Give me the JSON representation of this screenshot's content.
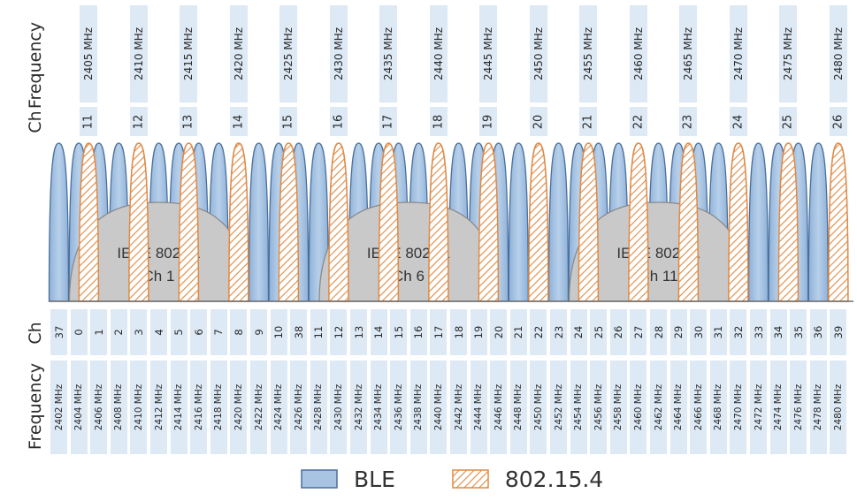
{
  "labels": {
    "top_frequency": "Frequency",
    "top_channel": "Ch",
    "bottom_channel": "Ch",
    "bottom_frequency": "Frequency"
  },
  "zigbee_channels": [
    {
      "ch": "11",
      "freq": "2405 MHz"
    },
    {
      "ch": "12",
      "freq": "2410 MHz"
    },
    {
      "ch": "13",
      "freq": "2415 MHz"
    },
    {
      "ch": "14",
      "freq": "2420 MHz"
    },
    {
      "ch": "15",
      "freq": "2425 MHz"
    },
    {
      "ch": "16",
      "freq": "2430 MHz"
    },
    {
      "ch": "17",
      "freq": "2435 MHz"
    },
    {
      "ch": "18",
      "freq": "2440 MHz"
    },
    {
      "ch": "19",
      "freq": "2445 MHz"
    },
    {
      "ch": "20",
      "freq": "2450 MHz"
    },
    {
      "ch": "21",
      "freq": "2455 MHz"
    },
    {
      "ch": "22",
      "freq": "2460 MHz"
    },
    {
      "ch": "23",
      "freq": "2465 MHz"
    },
    {
      "ch": "24",
      "freq": "2470 MHz"
    },
    {
      "ch": "25",
      "freq": "2475 MHz"
    },
    {
      "ch": "26",
      "freq": "2480 MHz"
    }
  ],
  "ble_channels": [
    {
      "ch": "37",
      "freq": "2402 MHz"
    },
    {
      "ch": "0",
      "freq": "2404 MHz"
    },
    {
      "ch": "1",
      "freq": "2406 MHz"
    },
    {
      "ch": "2",
      "freq": "2408 MHz"
    },
    {
      "ch": "3",
      "freq": "2410 MHz"
    },
    {
      "ch": "4",
      "freq": "2412 MHz"
    },
    {
      "ch": "5",
      "freq": "2414 MHz"
    },
    {
      "ch": "6",
      "freq": "2416 MHz"
    },
    {
      "ch": "7",
      "freq": "2418 MHz"
    },
    {
      "ch": "8",
      "freq": "2420 MHz"
    },
    {
      "ch": "9",
      "freq": "2422 MHz"
    },
    {
      "ch": "10",
      "freq": "2424 MHz"
    },
    {
      "ch": "38",
      "freq": "2426 MHz"
    },
    {
      "ch": "11",
      "freq": "2428 MHz"
    },
    {
      "ch": "12",
      "freq": "2430 MHz"
    },
    {
      "ch": "13",
      "freq": "2432 MHz"
    },
    {
      "ch": "14",
      "freq": "2434 MHz"
    },
    {
      "ch": "15",
      "freq": "2436 MHz"
    },
    {
      "ch": "16",
      "freq": "2438 MHz"
    },
    {
      "ch": "17",
      "freq": "2440 MHz"
    },
    {
      "ch": "18",
      "freq": "2442 MHz"
    },
    {
      "ch": "19",
      "freq": "2444 MHz"
    },
    {
      "ch": "20",
      "freq": "2446 MHz"
    },
    {
      "ch": "21",
      "freq": "2448 MHz"
    },
    {
      "ch": "22",
      "freq": "2450 MHz"
    },
    {
      "ch": "23",
      "freq": "2452 MHz"
    },
    {
      "ch": "24",
      "freq": "2454 MHz"
    },
    {
      "ch": "25",
      "freq": "2456 MHz"
    },
    {
      "ch": "26",
      "freq": "2458 MHz"
    },
    {
      "ch": "27",
      "freq": "2460 MHz"
    },
    {
      "ch": "28",
      "freq": "2462 MHz"
    },
    {
      "ch": "29",
      "freq": "2464 MHz"
    },
    {
      "ch": "30",
      "freq": "2466 MHz"
    },
    {
      "ch": "31",
      "freq": "2468 MHz"
    },
    {
      "ch": "32",
      "freq": "2470 MHz"
    },
    {
      "ch": "33",
      "freq": "2472 MHz"
    },
    {
      "ch": "34",
      "freq": "2474 MHz"
    },
    {
      "ch": "35",
      "freq": "2476 MHz"
    },
    {
      "ch": "36",
      "freq": "2478 MHz"
    },
    {
      "ch": "39",
      "freq": "2480 MHz"
    }
  ],
  "wifi_channels": [
    {
      "line1": "IEEE 802.11",
      "line2": "Ch 1",
      "center_mhz": 2412
    },
    {
      "line1": "IEEE 802.11",
      "line2": "Ch 6",
      "center_mhz": 2437
    },
    {
      "line1": "IEEE 802.11",
      "line2": "Ch 11",
      "center_mhz": 2462
    }
  ],
  "legend": {
    "ble": "BLE",
    "zigbee": "802.15.4"
  },
  "colors": {
    "ble_fill": "#a8c4e2",
    "ble_stroke": "#4a6f9c",
    "zigbee_stroke": "#e08a44",
    "wifi_fill": "#c9c9c9",
    "wifi_stroke": "#8a8a8a",
    "cell_bg": "#dde9f5"
  }
}
